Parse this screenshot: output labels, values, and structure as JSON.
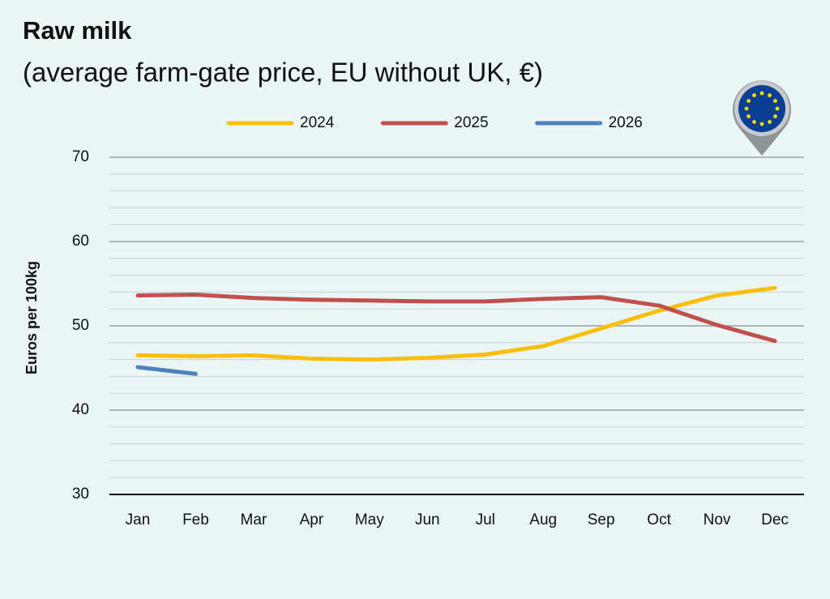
{
  "chart_data": {
    "type": "line",
    "title": "Raw milk",
    "subtitle": "(average farm-gate price, EU without UK, €)",
    "y_label": "Euros per 100kg",
    "categories": [
      "Jan",
      "Feb",
      "Mar",
      "Apr",
      "May",
      "Jun",
      "Jul",
      "Aug",
      "Sep",
      "Oct",
      "Nov",
      "Dec"
    ],
    "series": [
      {
        "name": "2024",
        "color": "#fbbf0a",
        "values": [
          46.5,
          46.4,
          46.5,
          46.1,
          46.0,
          46.2,
          46.6,
          47.6,
          49.7,
          51.8,
          53.6,
          54.5
        ]
      },
      {
        "name": "2025",
        "color": "#c0504d",
        "values": [
          53.6,
          53.7,
          53.3,
          53.1,
          53.0,
          52.9,
          52.9,
          53.2,
          53.4,
          52.4,
          50.1,
          48.2
        ]
      },
      {
        "name": "2026",
        "color": "#4f81bd",
        "values": [
          45.1,
          44.3,
          null,
          null,
          null,
          null,
          null,
          null,
          null,
          null,
          null,
          null
        ]
      }
    ],
    "ylim": [
      30,
      70
    ],
    "yticks": [
      30,
      40,
      50,
      60,
      70
    ],
    "grid": true,
    "minor_grid": true,
    "legend": "top"
  }
}
